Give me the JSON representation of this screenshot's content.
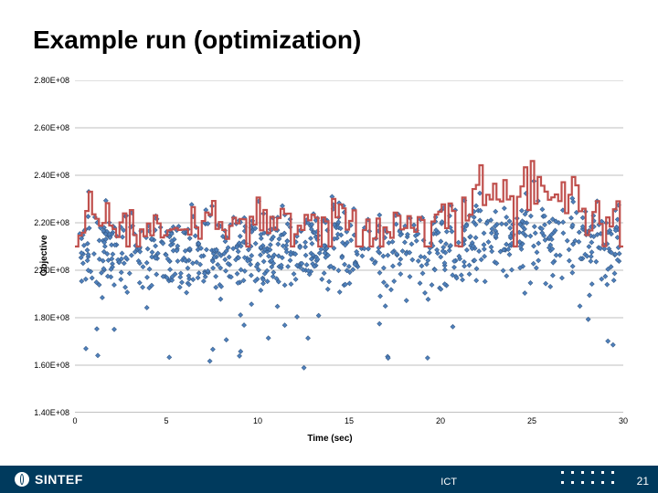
{
  "title": "Example run (optimization)",
  "footer": {
    "brand": "SINTEF",
    "ict": "ICT",
    "page": "21"
  },
  "chart": {
    "type": "scatter+line",
    "xlabel": "Time (sec)",
    "ylabel": "Objective",
    "xlim": [
      0,
      30
    ],
    "ylim": [
      140000000.0,
      280000000.0
    ],
    "xtick_step": 5,
    "ytick_step": 20000000.0,
    "xtick_labels": [
      "0",
      "5",
      "10",
      "15",
      "20",
      "25",
      "30"
    ],
    "ytick_labels": [
      "1.40E+08",
      "1.60E+08",
      "1.80E+08",
      "2.00E+08",
      "2.20E+08",
      "2.40E+08",
      "2.60E+08",
      "2.80E+08"
    ],
    "title_fontsize": 28,
    "label_fontsize": 10,
    "tick_fontsize": 9,
    "background_color": "#ffffff",
    "grid_color": "#bfbfbf",
    "axis_color": "#808080",
    "scatter": {
      "color": "#4f81bd",
      "border": "#385d8a",
      "marker": "diamond",
      "size": 5,
      "n": 900
    },
    "line": {
      "color": "#c0504d",
      "width": 2.2,
      "style": "step"
    },
    "seed": 4213,
    "band": {
      "lo": 182000000.0,
      "hi": 236000000.0
    },
    "bump": {
      "start": 0.72,
      "end": 0.92,
      "amount": 10000000.0
    }
  }
}
